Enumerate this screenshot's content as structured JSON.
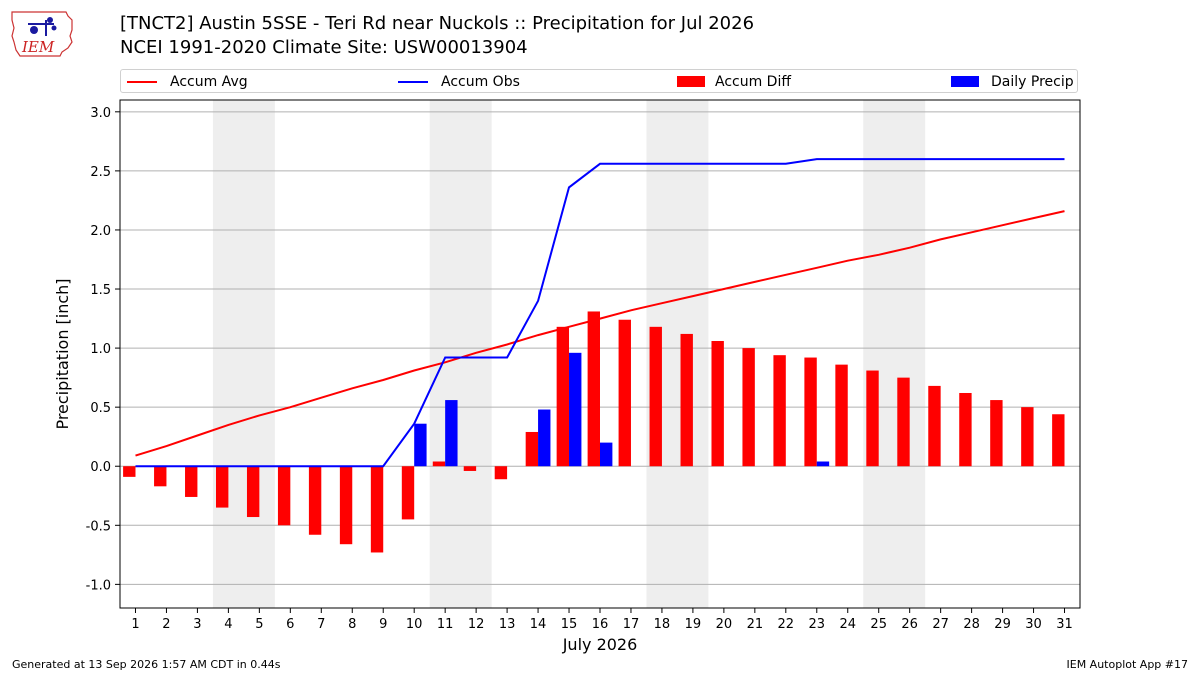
{
  "logo": {
    "text": "IEM"
  },
  "title_line1": "[TNCT2] Austin 5SSE - Teri Rd near Nuckols :: Precipitation for Jul 2026",
  "title_line2": "NCEI 1991-2020 Climate Site: USW00013904",
  "footer_left": "Generated at 13 Sep 2026 1:57 AM CDT in 0.44s",
  "footer_right": "IEM Autoplot App #17",
  "colors": {
    "accum_avg": "#ff0000",
    "accum_obs": "#0000ff",
    "accum_diff": "#ff0000",
    "daily_precip": "#0000ff",
    "weekend_band": "#eeeeee",
    "grid": "#b0b0b0"
  },
  "legend": {
    "accum_avg": "Accum Avg",
    "accum_obs": "Accum Obs",
    "accum_diff": "Accum Diff",
    "daily_precip": "Daily Precip"
  },
  "chart_data": {
    "type": "bar",
    "xlabel": "July 2026",
    "ylabel": "Precipitation [inch]",
    "ylim": [
      -1.2,
      3.1
    ],
    "yticks": [
      -1.0,
      -0.5,
      0.0,
      0.5,
      1.0,
      1.5,
      2.0,
      2.5,
      3.0
    ],
    "xlim": [
      0.5,
      31.5
    ],
    "grid": true,
    "legend_position": "top",
    "weekend_bands": [
      [
        4,
        5
      ],
      [
        11,
        12
      ],
      [
        18,
        19
      ],
      [
        25,
        26
      ]
    ],
    "x": [
      1,
      2,
      3,
      4,
      5,
      6,
      7,
      8,
      9,
      10,
      11,
      12,
      13,
      14,
      15,
      16,
      17,
      18,
      19,
      20,
      21,
      22,
      23,
      24,
      25,
      26,
      27,
      28,
      29,
      30,
      31
    ],
    "series": [
      {
        "name": "Accum Avg",
        "kind": "line",
        "values": [
          0.09,
          0.17,
          0.26,
          0.35,
          0.43,
          0.5,
          0.58,
          0.66,
          0.73,
          0.81,
          0.88,
          0.96,
          1.03,
          1.11,
          1.18,
          1.25,
          1.32,
          1.38,
          1.44,
          1.5,
          1.56,
          1.62,
          1.68,
          1.74,
          1.79,
          1.85,
          1.92,
          1.98,
          2.04,
          2.1,
          2.16
        ]
      },
      {
        "name": "Accum Obs",
        "kind": "line",
        "values": [
          0,
          0,
          0,
          0,
          0,
          0,
          0,
          0,
          0,
          0.36,
          0.92,
          0.92,
          0.92,
          1.4,
          2.36,
          2.56,
          2.56,
          2.56,
          2.56,
          2.56,
          2.56,
          2.56,
          2.6,
          2.6,
          2.6,
          2.6,
          2.6,
          2.6,
          2.6,
          2.6,
          2.6
        ]
      },
      {
        "name": "Accum Diff",
        "kind": "bar",
        "values": [
          -0.09,
          -0.17,
          -0.26,
          -0.35,
          -0.43,
          -0.5,
          -0.58,
          -0.66,
          -0.73,
          -0.45,
          0.04,
          -0.04,
          -0.11,
          0.29,
          1.18,
          1.31,
          1.24,
          1.18,
          1.12,
          1.06,
          1.0,
          0.94,
          0.92,
          0.86,
          0.81,
          0.75,
          0.68,
          0.62,
          0.56,
          0.5,
          0.44
        ]
      },
      {
        "name": "Daily Precip",
        "kind": "bar",
        "values": [
          0,
          0,
          0,
          0,
          0,
          0,
          0,
          0,
          0,
          0.36,
          0.56,
          0,
          0,
          0.48,
          0.96,
          0.2,
          0,
          0,
          0,
          0,
          0,
          0,
          0.04,
          0,
          0,
          0,
          0,
          0,
          0,
          0,
          0
        ]
      }
    ]
  }
}
